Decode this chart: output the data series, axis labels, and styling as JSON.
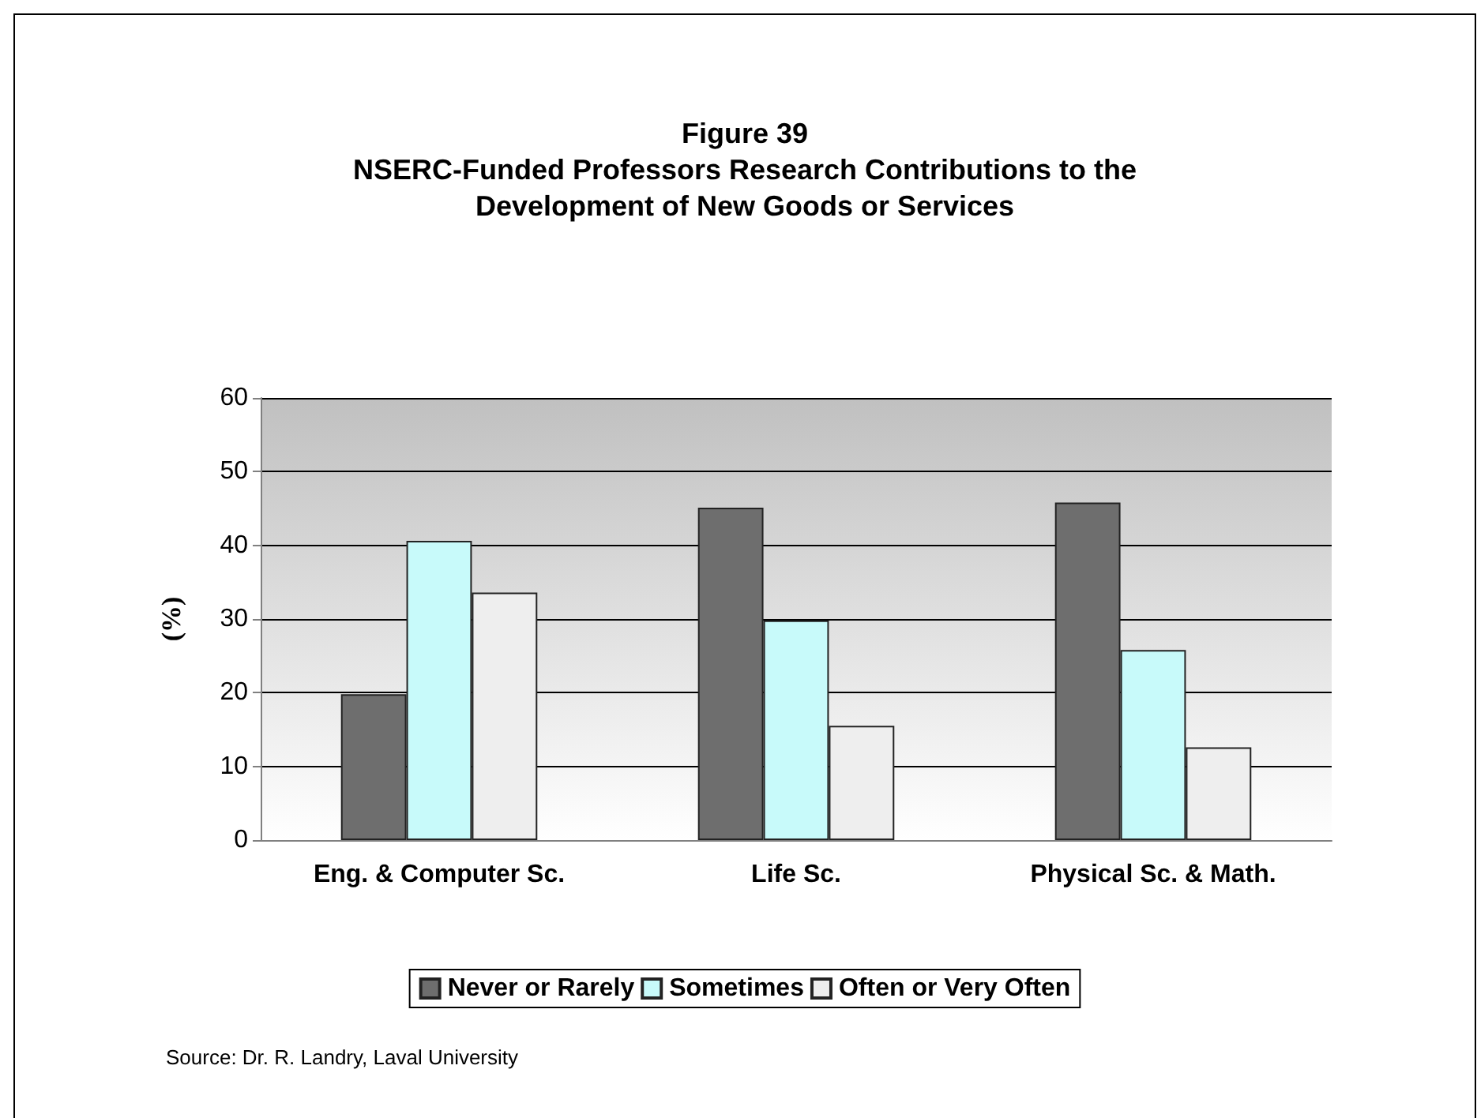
{
  "chart_data": {
    "type": "bar",
    "title": "Figure 39\nNSERC-Funded Professors Research Contributions to the\nDevelopment of New Goods or Services",
    "ylabel": "(%)",
    "categories": [
      "Eng. & Computer Sc.",
      "Life Sc.",
      "Physical Sc. & Math."
    ],
    "series": [
      {
        "name": "Never or Rarely",
        "color": "#6e6e6e",
        "values": [
          19.8,
          45.1,
          45.8
        ]
      },
      {
        "name": "Sometimes",
        "color": "#c8fafa",
        "values": [
          40.6,
          29.8,
          25.8
        ]
      },
      {
        "name": "Often or Very Often",
        "color": "#eeeeee",
        "values": [
          33.6,
          15.5,
          12.6
        ]
      }
    ],
    "ylim": [
      0,
      60
    ],
    "yticks": [
      0,
      10,
      20,
      30,
      40,
      50,
      60
    ],
    "grid": "y",
    "legend": "bottom",
    "annotations": [
      "Source: Dr. R. Landry, Laval University"
    ]
  }
}
